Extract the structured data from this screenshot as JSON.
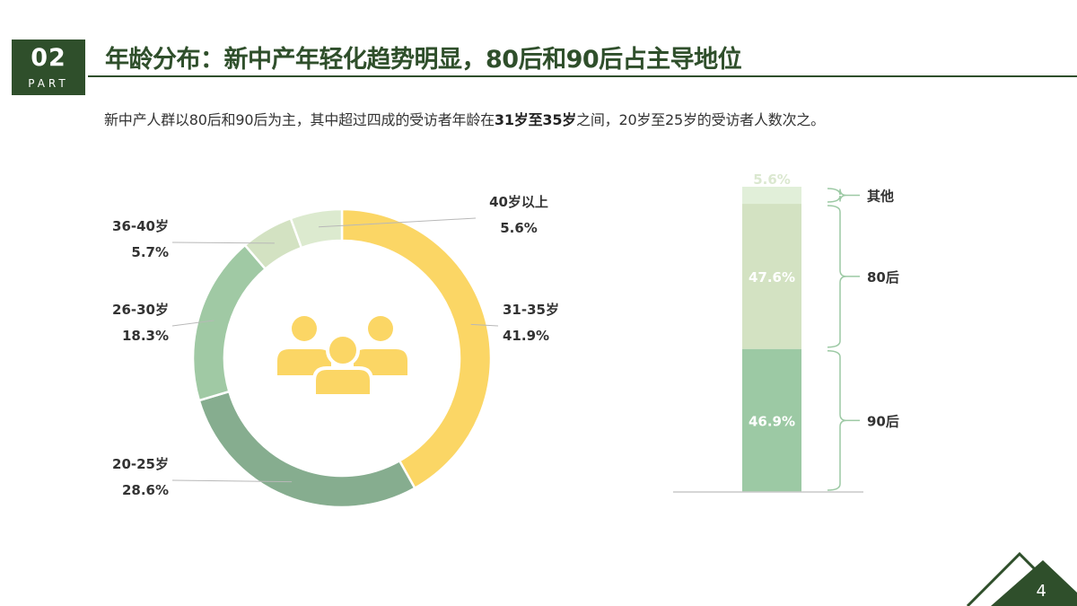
{
  "header": {
    "part_number": "02",
    "part_label": "PART",
    "title": "年龄分布：新中产年轻化趋势明显，80后和90后占主导地位"
  },
  "subtitle": {
    "before": "新中产人群以80后和90后为主，其中超过四成的受访者年龄在",
    "emphasis": "31岁至35岁",
    "after": "之间，20岁至25岁的受访者人数次之。"
  },
  "icons": {
    "center": "people-group-icon"
  },
  "colors": {
    "brand": "#2f4f2b",
    "slice_31_35": "#fbd665",
    "slice_20_25": "#86ad8f",
    "slice_26_30": "#a0c9a4",
    "slice_36_40": "#d3e2c2",
    "slice_40plus": "#dceacf",
    "bar_90s": "#9cc9a4",
    "bar_80s": "#d3e2c2",
    "bar_other": "#e1efd9"
  },
  "chart_data": [
    {
      "type": "pie",
      "variant": "donut",
      "slices": [
        {
          "label": "31-35岁",
          "value": 41.9,
          "value_label": "41.9%"
        },
        {
          "label": "20-25岁",
          "value": 28.6,
          "value_label": "28.6%"
        },
        {
          "label": "26-30岁",
          "value": 18.3,
          "value_label": "18.3%"
        },
        {
          "label": "36-40岁",
          "value": 5.7,
          "value_label": "5.7%"
        },
        {
          "label": "40岁以上",
          "value": 5.6,
          "value_label": "5.6%"
        }
      ]
    },
    {
      "type": "bar",
      "variant": "stacked-100",
      "segments": [
        {
          "label": "90后",
          "value": 46.9,
          "value_label": "46.9%"
        },
        {
          "label": "80后",
          "value": 47.6,
          "value_label": "47.6%"
        },
        {
          "label": "其他",
          "value": 5.6,
          "value_label": "5.6%"
        }
      ]
    }
  ],
  "footer": {
    "page_number": "4"
  }
}
